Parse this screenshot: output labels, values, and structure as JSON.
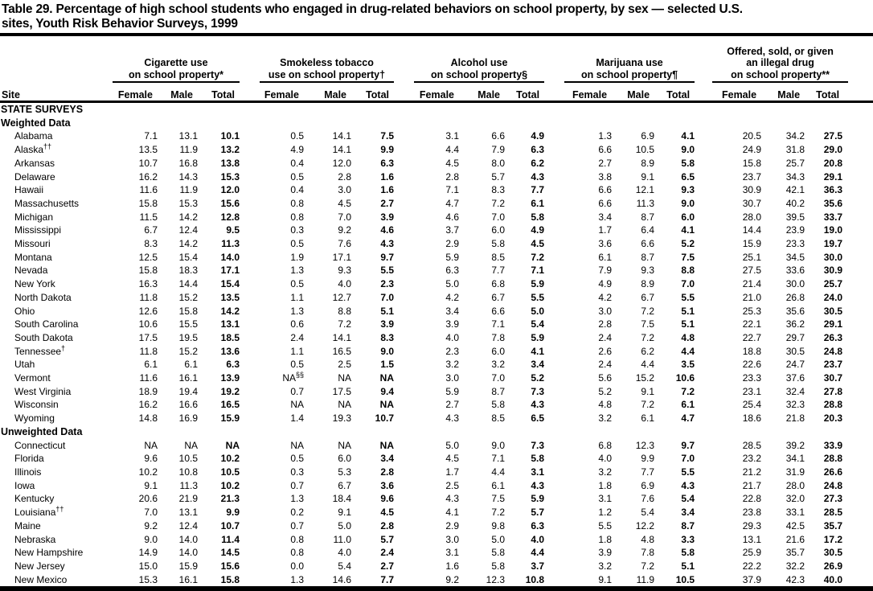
{
  "title_lines": [
    "Table 29. Percentage of high school students who engaged in drug-related behaviors on school property, by sex — selected U.S.",
    "sites, Youth Risk Behavior Surveys, 1999"
  ],
  "colors": {
    "text": "#000000",
    "background": "#ffffff",
    "rule": "#000000"
  },
  "table": {
    "site_header": "Site",
    "sub_headers": [
      "Female",
      "Male",
      "Total"
    ],
    "groups": [
      {
        "lines": [
          "Cigarette use",
          "on school property*"
        ]
      },
      {
        "lines": [
          "Smokeless tobacco",
          "use on school property†"
        ]
      },
      {
        "lines": [
          "Alcohol use",
          "on school property§"
        ]
      },
      {
        "lines": [
          "Marijuana use",
          "on school property¶"
        ]
      },
      {
        "lines": [
          "Offered, sold, or given",
          "an illegal drug",
          "on school property**"
        ]
      }
    ],
    "sections": [
      {
        "label": "STATE SURVEYS",
        "rows": []
      },
      {
        "label": "Weighted Data",
        "rows": [
          {
            "site": "Alabama",
            "site_sup": "",
            "v": [
              "7.1",
              "13.1",
              "10.1",
              "0.5",
              "14.1",
              "7.5",
              "3.1",
              "6.6",
              "4.9",
              "1.3",
              "6.9",
              "4.1",
              "20.5",
              "34.2",
              "27.5"
            ]
          },
          {
            "site": "Alaska",
            "site_sup": "††",
            "v": [
              "13.5",
              "11.9",
              "13.2",
              "4.9",
              "14.1",
              "9.9",
              "4.4",
              "7.9",
              "6.3",
              "6.6",
              "10.5",
              "9.0",
              "24.9",
              "31.8",
              "29.0"
            ]
          },
          {
            "site": "Arkansas",
            "site_sup": "",
            "v": [
              "10.7",
              "16.8",
              "13.8",
              "0.4",
              "12.0",
              "6.3",
              "4.5",
              "8.0",
              "6.2",
              "2.7",
              "8.9",
              "5.8",
              "15.8",
              "25.7",
              "20.8"
            ]
          },
          {
            "site": "Delaware",
            "site_sup": "",
            "v": [
              "16.2",
              "14.3",
              "15.3",
              "0.5",
              "2.8",
              "1.6",
              "2.8",
              "5.7",
              "4.3",
              "3.8",
              "9.1",
              "6.5",
              "23.7",
              "34.3",
              "29.1"
            ]
          },
          {
            "site": "Hawaii",
            "site_sup": "",
            "v": [
              "11.6",
              "11.9",
              "12.0",
              "0.4",
              "3.0",
              "1.6",
              "7.1",
              "8.3",
              "7.7",
              "6.6",
              "12.1",
              "9.3",
              "30.9",
              "42.1",
              "36.3"
            ]
          },
          {
            "site": "Massachusetts",
            "site_sup": "",
            "v": [
              "15.8",
              "15.3",
              "15.6",
              "0.8",
              "4.5",
              "2.7",
              "4.7",
              "7.2",
              "6.1",
              "6.6",
              "11.3",
              "9.0",
              "30.7",
              "40.2",
              "35.6"
            ]
          },
          {
            "site": "Michigan",
            "site_sup": "",
            "v": [
              "11.5",
              "14.2",
              "12.8",
              "0.8",
              "7.0",
              "3.9",
              "4.6",
              "7.0",
              "5.8",
              "3.4",
              "8.7",
              "6.0",
              "28.0",
              "39.5",
              "33.7"
            ]
          },
          {
            "site": "Mississippi",
            "site_sup": "",
            "v": [
              "6.7",
              "12.4",
              "9.5",
              "0.3",
              "9.2",
              "4.6",
              "3.7",
              "6.0",
              "4.9",
              "1.7",
              "6.4",
              "4.1",
              "14.4",
              "23.9",
              "19.0"
            ]
          },
          {
            "site": "Missouri",
            "site_sup": "",
            "v": [
              "8.3",
              "14.2",
              "11.3",
              "0.5",
              "7.6",
              "4.3",
              "2.9",
              "5.8",
              "4.5",
              "3.6",
              "6.6",
              "5.2",
              "15.9",
              "23.3",
              "19.7"
            ]
          },
          {
            "site": "Montana",
            "site_sup": "",
            "v": [
              "12.5",
              "15.4",
              "14.0",
              "1.9",
              "17.1",
              "9.7",
              "5.9",
              "8.5",
              "7.2",
              "6.1",
              "8.7",
              "7.5",
              "25.1",
              "34.5",
              "30.0"
            ]
          },
          {
            "site": "Nevada",
            "site_sup": "",
            "v": [
              "15.8",
              "18.3",
              "17.1",
              "1.3",
              "9.3",
              "5.5",
              "6.3",
              "7.7",
              "7.1",
              "7.9",
              "9.3",
              "8.8",
              "27.5",
              "33.6",
              "30.9"
            ]
          },
          {
            "site": "New York",
            "site_sup": "",
            "v": [
              "16.3",
              "14.4",
              "15.4",
              "0.5",
              "4.0",
              "2.3",
              "5.0",
              "6.8",
              "5.9",
              "4.9",
              "8.9",
              "7.0",
              "21.4",
              "30.0",
              "25.7"
            ]
          },
          {
            "site": "North Dakota",
            "site_sup": "",
            "v": [
              "11.8",
              "15.2",
              "13.5",
              "1.1",
              "12.7",
              "7.0",
              "4.2",
              "6.7",
              "5.5",
              "4.2",
              "6.7",
              "5.5",
              "21.0",
              "26.8",
              "24.0"
            ]
          },
          {
            "site": "Ohio",
            "site_sup": "",
            "v": [
              "12.6",
              "15.8",
              "14.2",
              "1.3",
              "8.8",
              "5.1",
              "3.4",
              "6.6",
              "5.0",
              "3.0",
              "7.2",
              "5.1",
              "25.3",
              "35.6",
              "30.5"
            ]
          },
          {
            "site": "South Carolina",
            "site_sup": "",
            "v": [
              "10.6",
              "15.5",
              "13.1",
              "0.6",
              "7.2",
              "3.9",
              "3.9",
              "7.1",
              "5.4",
              "2.8",
              "7.5",
              "5.1",
              "22.1",
              "36.2",
              "29.1"
            ]
          },
          {
            "site": "South Dakota",
            "site_sup": "",
            "v": [
              "17.5",
              "19.5",
              "18.5",
              "2.4",
              "14.1",
              "8.3",
              "4.0",
              "7.8",
              "5.9",
              "2.4",
              "7.2",
              "4.8",
              "22.7",
              "29.7",
              "26.3"
            ]
          },
          {
            "site": "Tennessee",
            "site_sup": "†",
            "v": [
              "11.8",
              "15.2",
              "13.6",
              "1.1",
              "16.5",
              "9.0",
              "2.3",
              "6.0",
              "4.1",
              "2.6",
              "6.2",
              "4.4",
              "18.8",
              "30.5",
              "24.8"
            ]
          },
          {
            "site": "Utah",
            "site_sup": "",
            "v": [
              "6.1",
              "6.1",
              "6.3",
              "0.5",
              "2.5",
              "1.5",
              "3.2",
              "3.2",
              "3.4",
              "2.4",
              "4.4",
              "3.5",
              "22.6",
              "24.7",
              "23.7"
            ]
          },
          {
            "site": "Vermont",
            "site_sup": "",
            "v": [
              "11.6",
              "16.1",
              "13.9",
              "NA^§§",
              "NA",
              "NA",
              "3.0",
              "7.0",
              "5.2",
              "5.6",
              "15.2",
              "10.6",
              "23.3",
              "37.6",
              "30.7"
            ]
          },
          {
            "site": "West Virginia",
            "site_sup": "",
            "v": [
              "18.9",
              "19.4",
              "19.2",
              "0.7",
              "17.5",
              "9.4",
              "5.9",
              "8.7",
              "7.3",
              "5.2",
              "9.1",
              "7.2",
              "23.1",
              "32.4",
              "27.8"
            ]
          },
          {
            "site": "Wisconsin",
            "site_sup": "",
            "v": [
              "16.2",
              "16.6",
              "16.5",
              "NA",
              "NA",
              "NA",
              "2.7",
              "5.8",
              "4.3",
              "4.8",
              "7.2",
              "6.1",
              "25.4",
              "32.3",
              "28.8"
            ]
          },
          {
            "site": "Wyoming",
            "site_sup": "",
            "v": [
              "14.8",
              "16.9",
              "15.9",
              "1.4",
              "19.3",
              "10.7",
              "4.3",
              "8.5",
              "6.5",
              "3.2",
              "6.1",
              "4.7",
              "18.6",
              "21.8",
              "20.3"
            ]
          }
        ]
      },
      {
        "label": "Unweighted Data",
        "rows": [
          {
            "site": "Connecticut",
            "site_sup": "",
            "v": [
              "NA",
              "NA",
              "NA",
              "NA",
              "NA",
              "NA",
              "5.0",
              "9.0",
              "7.3",
              "6.8",
              "12.3",
              "9.7",
              "28.5",
              "39.2",
              "33.9"
            ]
          },
          {
            "site": "Florida",
            "site_sup": "",
            "v": [
              "9.6",
              "10.5",
              "10.2",
              "0.5",
              "6.0",
              "3.4",
              "4.5",
              "7.1",
              "5.8",
              "4.0",
              "9.9",
              "7.0",
              "23.2",
              "34.1",
              "28.8"
            ]
          },
          {
            "site": "Illinois",
            "site_sup": "",
            "v": [
              "10.2",
              "10.8",
              "10.5",
              "0.3",
              "5.3",
              "2.8",
              "1.7",
              "4.4",
              "3.1",
              "3.2",
              "7.7",
              "5.5",
              "21.2",
              "31.9",
              "26.6"
            ]
          },
          {
            "site": "Iowa",
            "site_sup": "",
            "v": [
              "9.1",
              "11.3",
              "10.2",
              "0.7",
              "6.7",
              "3.6",
              "2.5",
              "6.1",
              "4.3",
              "1.8",
              "6.9",
              "4.3",
              "21.7",
              "28.0",
              "24.8"
            ]
          },
          {
            "site": "Kentucky",
            "site_sup": "",
            "v": [
              "20.6",
              "21.9",
              "21.3",
              "1.3",
              "18.4",
              "9.6",
              "4.3",
              "7.5",
              "5.9",
              "3.1",
              "7.6",
              "5.4",
              "22.8",
              "32.0",
              "27.3"
            ]
          },
          {
            "site": "Louisiana",
            "site_sup": "††",
            "v": [
              "7.0",
              "13.1",
              "9.9",
              "0.2",
              "9.1",
              "4.5",
              "4.1",
              "7.2",
              "5.7",
              "1.2",
              "5.4",
              "3.4",
              "23.8",
              "33.1",
              "28.5"
            ]
          },
          {
            "site": "Maine",
            "site_sup": "",
            "v": [
              "9.2",
              "12.4",
              "10.7",
              "0.7",
              "5.0",
              "2.8",
              "2.9",
              "9.8",
              "6.3",
              "5.5",
              "12.2",
              "8.7",
              "29.3",
              "42.5",
              "35.7"
            ]
          },
          {
            "site": "Nebraska",
            "site_sup": "",
            "v": [
              "9.0",
              "14.0",
              "11.4",
              "0.8",
              "11.0",
              "5.7",
              "3.0",
              "5.0",
              "4.0",
              "1.8",
              "4.8",
              "3.3",
              "13.1",
              "21.6",
              "17.2"
            ]
          },
          {
            "site": "New Hampshire",
            "site_sup": "",
            "v": [
              "14.9",
              "14.0",
              "14.5",
              "0.8",
              "4.0",
              "2.4",
              "3.1",
              "5.8",
              "4.4",
              "3.9",
              "7.8",
              "5.8",
              "25.9",
              "35.7",
              "30.5"
            ]
          },
          {
            "site": "New Jersey",
            "site_sup": "",
            "v": [
              "15.0",
              "15.9",
              "15.6",
              "0.0",
              "5.4",
              "2.7",
              "1.6",
              "5.8",
              "3.7",
              "3.2",
              "7.2",
              "5.1",
              "22.2",
              "32.2",
              "26.9"
            ]
          },
          {
            "site": "New Mexico",
            "site_sup": "",
            "v": [
              "15.3",
              "16.1",
              "15.8",
              "1.3",
              "14.6",
              "7.7",
              "9.2",
              "12.3",
              "10.8",
              "9.1",
              "11.9",
              "10.5",
              "37.9",
              "42.3",
              "40.0"
            ]
          }
        ]
      }
    ]
  }
}
